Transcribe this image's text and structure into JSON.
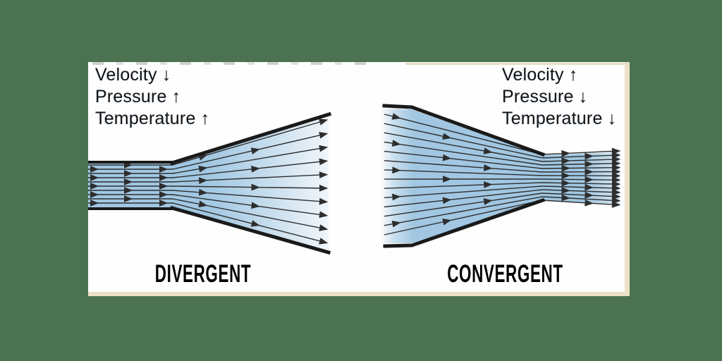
{
  "figure": {
    "divergent": {
      "title": "DIVERGENT",
      "properties": [
        "Velocity ↓",
        "Pressure ↑",
        "Temperature ↑"
      ]
    },
    "convergent": {
      "title": "CONVERGENT",
      "properties": [
        "Velocity ↑",
        "Pressure ↓",
        "Temperature ↓"
      ]
    }
  },
  "colors": {
    "backdrop": "#4b7351",
    "panel": "#fefefe",
    "panel-border": "#ece1c6",
    "flow": "#9cc4e0",
    "wall": "#1a1a1a",
    "stream": "#2e2e2e",
    "label": "#121212",
    "title": "#000000"
  }
}
